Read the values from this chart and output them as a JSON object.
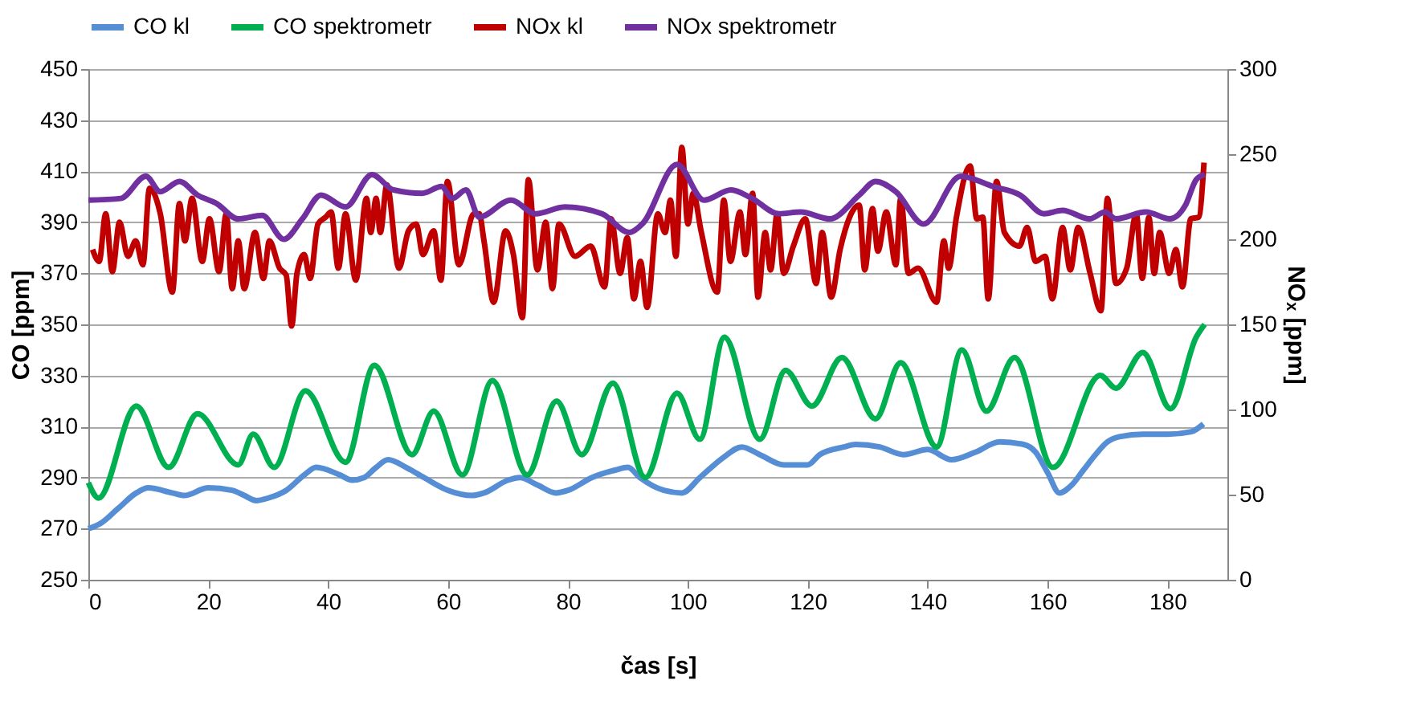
{
  "chart_data": {
    "type": "line",
    "xlabel": "čas [s]",
    "ylabel": "CO [ppm]",
    "y2label": "NOₓ [ppm]",
    "xlim": [
      0,
      190
    ],
    "xticks": [
      0,
      20,
      40,
      60,
      80,
      100,
      120,
      140,
      160,
      180
    ],
    "ylim": [
      250,
      450
    ],
    "yticks": [
      250,
      270,
      290,
      310,
      330,
      350,
      370,
      390,
      410,
      430,
      450
    ],
    "y2lim": [
      0,
      300
    ],
    "y2ticks": [
      0,
      50,
      100,
      150,
      200,
      250,
      300
    ],
    "grid": "y",
    "legend": "top",
    "series": [
      {
        "name": "CO kl",
        "color": "#558ed5",
        "x": [
          0,
          2,
          5,
          8,
          10,
          14,
          16,
          20,
          24,
          26,
          28,
          30,
          33,
          36,
          38,
          42,
          44,
          46,
          48,
          50,
          53,
          56,
          60,
          64,
          66,
          70,
          72,
          75,
          78,
          80,
          84,
          88,
          90,
          92,
          96,
          99,
          102,
          106,
          109,
          112,
          116,
          120,
          122,
          126,
          128,
          132,
          136,
          140,
          144,
          148,
          152,
          156,
          158,
          160,
          162,
          164,
          166,
          168,
          170,
          172,
          176,
          180,
          184,
          186
        ],
        "values": [
          270,
          272,
          278,
          284,
          286,
          284,
          283,
          286,
          285,
          283,
          281,
          282,
          285,
          291,
          294,
          291,
          289,
          290,
          294,
          297,
          294,
          290,
          285,
          283,
          284,
          289,
          290,
          287,
          284,
          285,
          290,
          293,
          294,
          290,
          285,
          284,
          290,
          298,
          302,
          299,
          295,
          295,
          299,
          302,
          303,
          302,
          299,
          301,
          297,
          300,
          304,
          303,
          300,
          292,
          284,
          287,
          293,
          299,
          304,
          306,
          307,
          307,
          308,
          311
        ]
      },
      {
        "name": "CO spektrometr",
        "color": "#00b050",
        "x": [
          0,
          1.7,
          8,
          13.4,
          18.2,
          25,
          27.5,
          31,
          36.2,
          42.9,
          47.7,
          54,
          57.6,
          62.4,
          67.4,
          73.2,
          78.1,
          82.3,
          87.5,
          92.9,
          98.2,
          102,
          106.1,
          112,
          116.3,
          120.7,
          125.7,
          131.3,
          135.5,
          141.5,
          145.7,
          149.8,
          154.5,
          160.9,
          168.8,
          171.4,
          175.9,
          180.5,
          184.8,
          186.2
        ],
        "values": [
          288,
          282,
          318,
          294,
          315,
          295,
          307,
          294,
          324,
          296,
          334,
          299,
          316,
          291,
          328,
          291,
          320,
          299,
          327,
          290,
          323,
          305,
          345,
          305,
          332,
          318,
          337,
          313,
          335,
          302,
          340,
          316,
          337,
          294,
          330,
          325,
          339,
          317,
          345,
          350
        ]
      },
      {
        "name": "NOx kl",
        "color": "#c00000",
        "axis": "y2",
        "x": [
          0.7,
          1.8,
          2.9,
          4,
          5.2,
          6.6,
          7.9,
          9.1,
          10.2,
          12,
          14,
          15.2,
          16.1,
          17.3,
          19,
          20.2,
          21.8,
          23,
          24,
          25,
          26,
          27.8,
          29.2,
          30.2,
          31.9,
          33,
          33.9,
          34.8,
          36,
          37,
          38.3,
          39.6,
          40.5,
          41.7,
          42.9,
          44.6,
          46.4,
          47.1,
          48,
          48.7,
          49.8,
          51.8,
          53.4,
          54.7,
          55.8,
          57.6,
          58.8,
          59.9,
          61.8,
          64.3,
          65.2,
          66,
          67.6,
          69.6,
          70.9,
          72.4,
          73.4,
          74.9,
          76.3,
          77.4,
          78.5,
          81.2,
          83.8,
          86.1,
          87.2,
          88.7,
          89.9,
          91,
          92.1,
          93.2,
          95,
          96.2,
          97.1,
          98,
          99,
          100,
          100.9,
          102.2,
          104.9,
          106,
          107.1,
          108.7,
          109.6,
          110.8,
          111.7,
          112.9,
          113.8,
          114.9,
          116,
          117.6,
          119.6,
          121.4,
          122.4,
          123.9,
          125.4,
          128.6,
          129.5,
          130.8,
          131.7,
          133.1,
          134.7,
          135.5,
          136.8,
          138.4,
          141.5,
          142.7,
          143.5,
          144.8,
          147.1,
          148.2,
          149.2,
          150.1,
          151.5,
          152.8,
          155.3,
          156.6,
          158,
          159.6,
          160.8,
          162.5,
          163.8,
          165.1,
          167.1,
          168.9,
          170,
          171.4,
          173.2,
          174.8,
          175.8,
          176.9,
          177.8,
          178.7,
          180.3,
          181.4,
          182.5,
          183.9,
          185.2,
          186.1
        ],
        "values": [
          194,
          187,
          215,
          181,
          210,
          190,
          199,
          185,
          230,
          215,
          169,
          221,
          199,
          224,
          187,
          212,
          181,
          215,
          171,
          199,
          171,
          204,
          177,
          199,
          183,
          179,
          149,
          180,
          191,
          177,
          209,
          213,
          216,
          183,
          215,
          176,
          224,
          204,
          224,
          204,
          232,
          183,
          205,
          209,
          191,
          205,
          176,
          234,
          185,
          215,
          215,
          199,
          163,
          205,
          191,
          154,
          235,
          182,
          210,
          171,
          209,
          190,
          196,
          172,
          212,
          180,
          201,
          165,
          187,
          160,
          215,
          204,
          223,
          190,
          254,
          209,
          227,
          205,
          169,
          223,
          187,
          216,
          191,
          227,
          166,
          204,
          182,
          215,
          180,
          196,
          212,
          174,
          204,
          166,
          194,
          220,
          182,
          218,
          193,
          216,
          185,
          224,
          180,
          183,
          163,
          199,
          183,
          213,
          243,
          212,
          213,
          165,
          234,
          204,
          196,
          207,
          187,
          190,
          165,
          207,
          182,
          207,
          180,
          158,
          224,
          174,
          183,
          215,
          177,
          213,
          180,
          204,
          180,
          194,
          172,
          212,
          213,
          245
        ]
      },
      {
        "name": "NOx spektrometr",
        "color": "#7030a0",
        "axis": "y2",
        "x": [
          0,
          5.4,
          9.6,
          12,
          15.2,
          18.2,
          21.4,
          25,
          29,
          32.6,
          35.7,
          38.8,
          42.9,
          47.3,
          50.9,
          55.7,
          58.9,
          60.7,
          63,
          65.2,
          70.5,
          74.6,
          79.5,
          85.7,
          90.2,
          92.4,
          98.2,
          102.7,
          107.2,
          110.7,
          115.2,
          118.8,
          123.7,
          128.6,
          131.3,
          134.7,
          139.3,
          145.5,
          150.9,
          155.4,
          159.4,
          162.5,
          167,
          169.6,
          171.4,
          176.4,
          180.4,
          183,
          184.8,
          186.2
        ],
        "values": [
          223,
          224,
          237,
          228,
          234,
          226,
          221,
          212,
          214,
          200,
          212,
          226,
          219,
          238,
          229,
          227,
          231,
          224,
          229,
          213,
          223,
          215,
          219,
          215,
          204,
          209,
          244,
          223,
          229,
          224,
          215,
          216,
          212,
          226,
          234,
          228,
          209,
          237,
          231,
          226,
          215,
          217,
          212,
          216,
          212,
          216,
          212,
          220,
          235,
          238
        ]
      }
    ]
  }
}
